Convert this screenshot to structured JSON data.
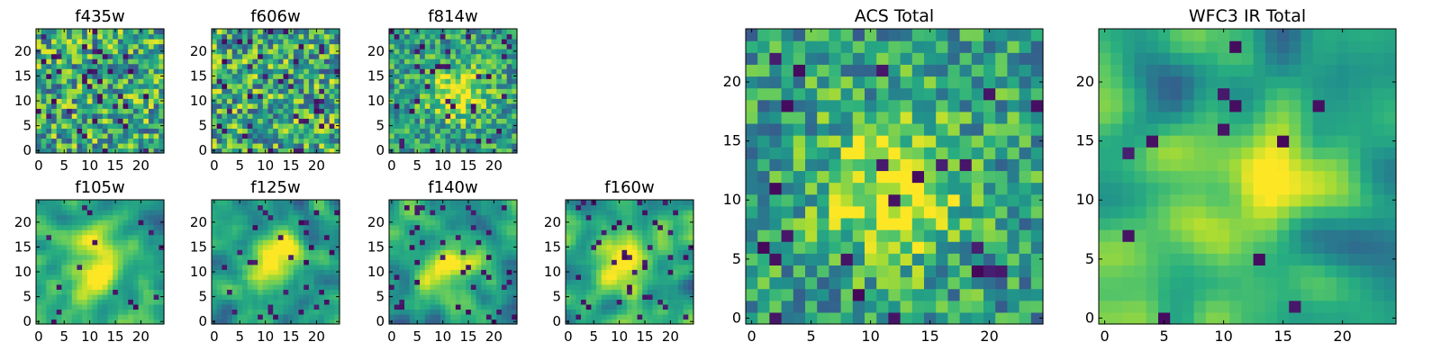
{
  "chart_data": {
    "type": "heatmap",
    "colormap": "viridis",
    "grid": false,
    "panels": [
      {
        "name": "f435w",
        "title": "f435w",
        "size": 25,
        "xlim": [
          0,
          24
        ],
        "ylim": [
          0,
          24
        ],
        "xticks": [
          0,
          5,
          10,
          15,
          20
        ],
        "yticks": [
          0,
          5,
          10,
          15,
          20
        ],
        "hotspot": null,
        "smooth": 0,
        "dark_fraction": 0.06
      },
      {
        "name": "f606w",
        "title": "f606w",
        "size": 25,
        "xlim": [
          0,
          24
        ],
        "ylim": [
          0,
          24
        ],
        "xticks": [
          0,
          5,
          10,
          15,
          20
        ],
        "yticks": [
          0,
          5,
          10,
          15,
          20
        ],
        "hotspot": null,
        "smooth": 0,
        "dark_fraction": 0.07
      },
      {
        "name": "f814w",
        "title": "f814w",
        "size": 25,
        "xlim": [
          0,
          24
        ],
        "ylim": [
          0,
          24
        ],
        "xticks": [
          0,
          5,
          10,
          15,
          20
        ],
        "yticks": [
          0,
          5,
          10,
          15,
          20
        ],
        "hotspot": [
          13,
          12
        ],
        "smooth": 0,
        "dark_fraction": 0.05
      },
      {
        "name": "f105w",
        "title": "f105w",
        "size": 25,
        "xlim": [
          0,
          24
        ],
        "ylim": [
          0,
          24
        ],
        "xticks": [
          0,
          5,
          10,
          15,
          20
        ],
        "yticks": [
          0,
          5,
          10,
          15,
          20
        ],
        "hotspot": [
          12,
          12
        ],
        "smooth": 2,
        "dark_fraction": 0.04
      },
      {
        "name": "f125w",
        "title": "f125w",
        "size": 25,
        "xlim": [
          0,
          24
        ],
        "ylim": [
          0,
          24
        ],
        "xticks": [
          0,
          5,
          10,
          15,
          20
        ],
        "yticks": [
          0,
          5,
          10,
          15,
          20
        ],
        "hotspot": [
          12,
          12
        ],
        "smooth": 2,
        "dark_fraction": 0.06
      },
      {
        "name": "f140w",
        "title": "f140w",
        "size": 25,
        "xlim": [
          0,
          24
        ],
        "ylim": [
          0,
          24
        ],
        "xticks": [
          0,
          5,
          10,
          15,
          20
        ],
        "yticks": [
          0,
          5,
          10,
          15,
          20
        ],
        "hotspot": [
          12,
          12
        ],
        "smooth": 2,
        "dark_fraction": 0.07
      },
      {
        "name": "f160w",
        "title": "f160w",
        "size": 25,
        "xlim": [
          0,
          24
        ],
        "ylim": [
          0,
          24
        ],
        "xticks": [
          0,
          5,
          10,
          15,
          20
        ],
        "yticks": [
          0,
          5,
          10,
          15,
          20
        ],
        "hotspot": [
          11,
          12
        ],
        "smooth": 2,
        "dark_fraction": 0.05
      },
      {
        "name": "acs-total",
        "title": "ACS Total",
        "size": 25,
        "xlim": [
          0,
          24
        ],
        "ylim": [
          0,
          24
        ],
        "xticks": [
          0,
          5,
          10,
          15,
          20
        ],
        "yticks": [
          0,
          5,
          10,
          15,
          20
        ],
        "hotspot": [
          12,
          11
        ],
        "smooth": 0,
        "dark_fraction": 0.03
      },
      {
        "name": "wfc3-ir-total",
        "title": "WFC3 IR Total",
        "size": 25,
        "xlim": [
          0,
          24
        ],
        "ylim": [
          0,
          24
        ],
        "xticks": [
          0,
          5,
          10,
          15,
          20
        ],
        "yticks": [
          0,
          5,
          10,
          15,
          20
        ],
        "hotspot": [
          12,
          12
        ],
        "smooth": 3,
        "dark_fraction": 0.03
      }
    ]
  }
}
